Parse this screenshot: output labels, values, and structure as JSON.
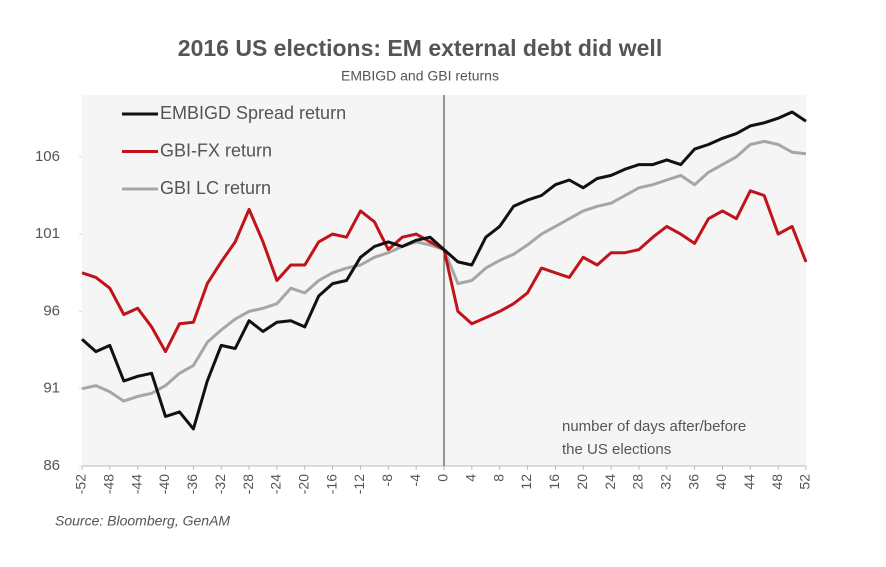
{
  "chart_data": {
    "type": "line",
    "title": "2016 US elections: EM external debt did well",
    "subtitle": "EMBIGD and GBI returns",
    "annotation": [
      "number of days after/before",
      "the US elections"
    ],
    "source": "Source: Bloomberg, GenAM",
    "x": [
      -52,
      -50,
      -48,
      -46,
      -44,
      -42,
      -40,
      -38,
      -36,
      -34,
      -32,
      -30,
      -28,
      -26,
      -24,
      -22,
      -20,
      -18,
      -16,
      -14,
      -12,
      -10,
      -8,
      -6,
      -4,
      -2,
      0,
      2,
      4,
      6,
      8,
      10,
      12,
      14,
      16,
      18,
      20,
      22,
      24,
      26,
      28,
      30,
      32,
      34,
      36,
      38,
      40,
      42,
      44,
      46,
      48,
      50,
      52
    ],
    "series": [
      {
        "name": "EMBIGD Spread return",
        "color": "#111111",
        "values": [
          94.2,
          93.4,
          93.8,
          91.5,
          91.8,
          92.0,
          89.2,
          89.5,
          88.4,
          91.5,
          93.8,
          93.6,
          95.4,
          94.7,
          95.3,
          95.4,
          95.0,
          97.0,
          97.8,
          98.0,
          99.5,
          100.2,
          100.5,
          100.2,
          100.6,
          100.8,
          100.0,
          99.2,
          99.0,
          100.8,
          101.5,
          102.8,
          103.2,
          103.5,
          104.2,
          104.5,
          104.0,
          104.6,
          104.8,
          105.2,
          105.5,
          105.5,
          105.8,
          105.5,
          106.5,
          106.8,
          107.2,
          107.5,
          108.0,
          108.2,
          108.5,
          108.9,
          108.3
        ]
      },
      {
        "name": "GBI-FX return",
        "color": "#c0141a",
        "values": [
          98.5,
          98.2,
          97.5,
          95.8,
          96.2,
          95.0,
          93.4,
          95.2,
          95.3,
          97.8,
          99.2,
          100.5,
          102.6,
          100.5,
          98.0,
          99.0,
          99.0,
          100.5,
          101.0,
          100.8,
          102.5,
          101.8,
          100.0,
          100.8,
          101.0,
          100.5,
          100.0,
          96.0,
          95.2,
          95.6,
          96.0,
          96.5,
          97.2,
          98.8,
          98.5,
          98.2,
          99.5,
          99.0,
          99.8,
          99.8,
          100.0,
          100.8,
          101.5,
          101.0,
          100.4,
          102.0,
          102.5,
          102.0,
          103.8,
          103.5,
          101.0,
          101.5,
          99.2
        ]
      },
      {
        "name": "GBI LC return",
        "color": "#a6a6a6",
        "values": [
          91.0,
          91.2,
          90.8,
          90.2,
          90.5,
          90.7,
          91.2,
          92.0,
          92.5,
          94.0,
          94.8,
          95.5,
          96.0,
          96.2,
          96.5,
          97.5,
          97.2,
          98.0,
          98.5,
          98.8,
          99.0,
          99.5,
          99.8,
          100.2,
          100.5,
          100.3,
          100.0,
          97.8,
          98.0,
          98.8,
          99.3,
          99.7,
          100.3,
          101.0,
          101.5,
          102.0,
          102.5,
          102.8,
          103.0,
          103.5,
          104.0,
          104.2,
          104.5,
          104.8,
          104.2,
          105.0,
          105.5,
          106.0,
          106.8,
          107.0,
          106.8,
          106.3,
          106.2
        ]
      }
    ],
    "xlim": [
      -52,
      52
    ],
    "xticks": [
      -52,
      -48,
      -44,
      -40,
      -36,
      -32,
      -28,
      -24,
      -20,
      -16,
      -12,
      -8,
      -4,
      0,
      4,
      8,
      12,
      16,
      20,
      24,
      28,
      32,
      36,
      40,
      44,
      48,
      52
    ],
    "ylim": [
      86,
      110
    ],
    "yticks": [
      86,
      91,
      96,
      101,
      106
    ],
    "vline": 0,
    "legend": "upper left"
  }
}
